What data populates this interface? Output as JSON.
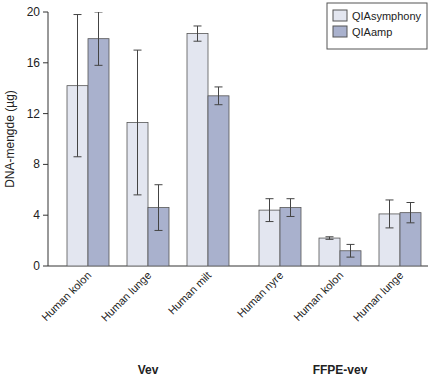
{
  "chart_data": {
    "type": "bar",
    "y_label": "DNA-mengde (µg)",
    "categories": [
      "Human kolon",
      "Human lunge",
      "Human milt",
      "Human nyre",
      "Human kolon",
      "Human lunge"
    ],
    "category_groups": [
      "Vev",
      "Vev",
      "Vev",
      "FFPE-vev",
      "FFPE-vev",
      "FFPE-vev"
    ],
    "series": [
      {
        "name": "QIAsymphony",
        "color": "#e3e6f0",
        "values": [
          14.2,
          11.3,
          18.3,
          4.4,
          2.2,
          4.1
        ],
        "errors": [
          5.6,
          5.7,
          0.6,
          0.9,
          0.1,
          1.1
        ]
      },
      {
        "name": "QIAamp",
        "color": "#a9b1cd",
        "values": [
          17.9,
          4.6,
          13.4,
          4.6,
          1.2,
          4.2
        ],
        "errors": [
          2.1,
          1.8,
          0.7,
          0.7,
          0.5,
          0.8
        ]
      }
    ],
    "ylim": [
      0,
      20
    ],
    "yticks": [
      0,
      4,
      8,
      12,
      16,
      20
    ],
    "legend": "upper right",
    "grid": false
  }
}
